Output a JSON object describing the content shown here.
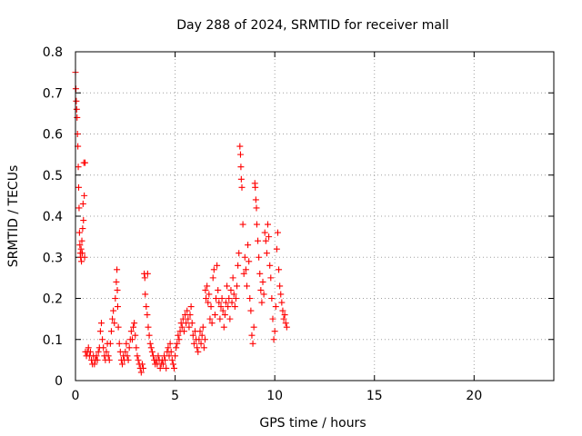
{
  "chart_data": {
    "type": "scatter",
    "title": "Day 288 of 2024, SRMTID for receiver mall",
    "xlabel": "GPS time / hours",
    "ylabel": "SRMTID / TECUs",
    "xlim": [
      0,
      24
    ],
    "ylim": [
      0,
      0.8
    ],
    "xticks": [
      0,
      5,
      10,
      15,
      20
    ],
    "xtick_labels": [
      "0",
      "5",
      "10",
      "15",
      "20"
    ],
    "yticks": [
      0,
      0.1,
      0.2,
      0.3,
      0.4,
      0.5,
      0.6,
      0.7,
      0.8
    ],
    "ytick_labels": [
      "0",
      "0.1",
      "0.2",
      "0.3",
      "0.4",
      "0.5",
      "0.6",
      "0.7",
      "0.8"
    ],
    "grid": true,
    "marker": "+",
    "color": "#ff0000",
    "series": [
      {
        "name": "SRMTID",
        "points": [
          [
            0.0,
            0.75
          ],
          [
            0.02,
            0.71
          ],
          [
            0.04,
            0.68
          ],
          [
            0.06,
            0.66
          ],
          [
            0.08,
            0.64
          ],
          [
            0.1,
            0.6
          ],
          [
            0.12,
            0.57
          ],
          [
            0.14,
            0.52
          ],
          [
            0.16,
            0.47
          ],
          [
            0.18,
            0.42
          ],
          [
            0.2,
            0.36
          ],
          [
            0.22,
            0.33
          ],
          [
            0.24,
            0.31
          ],
          [
            0.26,
            0.3
          ],
          [
            0.28,
            0.32
          ],
          [
            0.3,
            0.29
          ],
          [
            0.32,
            0.34
          ],
          [
            0.34,
            0.31
          ],
          [
            0.36,
            0.37
          ],
          [
            0.38,
            0.43
          ],
          [
            0.4,
            0.39
          ],
          [
            0.42,
            0.53
          ],
          [
            0.44,
            0.45
          ],
          [
            0.46,
            0.3
          ],
          [
            0.48,
            0.53
          ],
          [
            0.5,
            0.07
          ],
          [
            0.55,
            0.06
          ],
          [
            0.6,
            0.07
          ],
          [
            0.65,
            0.08
          ],
          [
            0.7,
            0.06
          ],
          [
            0.75,
            0.07
          ],
          [
            0.8,
            0.05
          ],
          [
            0.85,
            0.04
          ],
          [
            0.9,
            0.06
          ],
          [
            0.95,
            0.04
          ],
          [
            1.0,
            0.05
          ],
          [
            1.05,
            0.06
          ],
          [
            1.1,
            0.05
          ],
          [
            1.15,
            0.07
          ],
          [
            1.2,
            0.08
          ],
          [
            1.25,
            0.12
          ],
          [
            1.3,
            0.14
          ],
          [
            1.35,
            0.1
          ],
          [
            1.4,
            0.08
          ],
          [
            1.45,
            0.06
          ],
          [
            1.5,
            0.05
          ],
          [
            1.55,
            0.07
          ],
          [
            1.6,
            0.09
          ],
          [
            1.65,
            0.06
          ],
          [
            1.7,
            0.05
          ],
          [
            1.75,
            0.09
          ],
          [
            1.8,
            0.12
          ],
          [
            1.85,
            0.15
          ],
          [
            1.9,
            0.17
          ],
          [
            1.95,
            0.14
          ],
          [
            2.0,
            0.2
          ],
          [
            2.05,
            0.24
          ],
          [
            2.08,
            0.27
          ],
          [
            2.1,
            0.22
          ],
          [
            2.12,
            0.18
          ],
          [
            2.15,
            0.13
          ],
          [
            2.2,
            0.09
          ],
          [
            2.25,
            0.07
          ],
          [
            2.3,
            0.05
          ],
          [
            2.35,
            0.04
          ],
          [
            2.4,
            0.06
          ],
          [
            2.45,
            0.05
          ],
          [
            2.5,
            0.07
          ],
          [
            2.55,
            0.09
          ],
          [
            2.6,
            0.06
          ],
          [
            2.65,
            0.05
          ],
          [
            2.7,
            0.08
          ],
          [
            2.75,
            0.1
          ],
          [
            2.8,
            0.12
          ],
          [
            2.85,
            0.1
          ],
          [
            2.9,
            0.13
          ],
          [
            2.95,
            0.14
          ],
          [
            3.0,
            0.11
          ],
          [
            3.05,
            0.08
          ],
          [
            3.1,
            0.06
          ],
          [
            3.15,
            0.05
          ],
          [
            3.2,
            0.04
          ],
          [
            3.25,
            0.03
          ],
          [
            3.3,
            0.02
          ],
          [
            3.35,
            0.04
          ],
          [
            3.4,
            0.03
          ],
          [
            3.45,
            0.26
          ],
          [
            3.48,
            0.25
          ],
          [
            3.5,
            0.21
          ],
          [
            3.55,
            0.18
          ],
          [
            3.6,
            0.16
          ],
          [
            3.62,
            0.26
          ],
          [
            3.65,
            0.13
          ],
          [
            3.7,
            0.11
          ],
          [
            3.75,
            0.09
          ],
          [
            3.8,
            0.08
          ],
          [
            3.85,
            0.07
          ],
          [
            3.9,
            0.06
          ],
          [
            3.95,
            0.05
          ],
          [
            4.0,
            0.04
          ],
          [
            4.05,
            0.05
          ],
          [
            4.1,
            0.04
          ],
          [
            4.15,
            0.06
          ],
          [
            4.2,
            0.05
          ],
          [
            4.25,
            0.03
          ],
          [
            4.3,
            0.04
          ],
          [
            4.35,
            0.05
          ],
          [
            4.4,
            0.04
          ],
          [
            4.45,
            0.06
          ],
          [
            4.5,
            0.05
          ],
          [
            4.55,
            0.03
          ],
          [
            4.6,
            0.07
          ],
          [
            4.65,
            0.08
          ],
          [
            4.7,
            0.06
          ],
          [
            4.75,
            0.09
          ],
          [
            4.8,
            0.07
          ],
          [
            4.85,
            0.05
          ],
          [
            4.9,
            0.04
          ],
          [
            4.95,
            0.03
          ],
          [
            5.0,
            0.06
          ],
          [
            5.05,
            0.08
          ],
          [
            5.1,
            0.09
          ],
          [
            5.15,
            0.11
          ],
          [
            5.2,
            0.1
          ],
          [
            5.25,
            0.12
          ],
          [
            5.3,
            0.14
          ],
          [
            5.35,
            0.13
          ],
          [
            5.4,
            0.15
          ],
          [
            5.45,
            0.12
          ],
          [
            5.5,
            0.16
          ],
          [
            5.55,
            0.14
          ],
          [
            5.6,
            0.17
          ],
          [
            5.65,
            0.15
          ],
          [
            5.7,
            0.13
          ],
          [
            5.75,
            0.16
          ],
          [
            5.8,
            0.18
          ],
          [
            5.85,
            0.14
          ],
          [
            5.9,
            0.11
          ],
          [
            5.95,
            0.09
          ],
          [
            6.0,
            0.12
          ],
          [
            6.05,
            0.1
          ],
          [
            6.1,
            0.08
          ],
          [
            6.15,
            0.07
          ],
          [
            6.2,
            0.1
          ],
          [
            6.25,
            0.12
          ],
          [
            6.3,
            0.09
          ],
          [
            6.35,
            0.11
          ],
          [
            6.4,
            0.13
          ],
          [
            6.45,
            0.08
          ],
          [
            6.5,
            0.1
          ],
          [
            6.52,
            0.22
          ],
          [
            6.55,
            0.2
          ],
          [
            6.6,
            0.23
          ],
          [
            6.65,
            0.19
          ],
          [
            6.7,
            0.21
          ],
          [
            6.75,
            0.15
          ],
          [
            6.8,
            0.18
          ],
          [
            6.85,
            0.14
          ],
          [
            6.9,
            0.25
          ],
          [
            6.95,
            0.27
          ],
          [
            7.0,
            0.16
          ],
          [
            7.05,
            0.2
          ],
          [
            7.1,
            0.28
          ],
          [
            7.15,
            0.22
          ],
          [
            7.2,
            0.19
          ],
          [
            7.25,
            0.15
          ],
          [
            7.3,
            0.18
          ],
          [
            7.35,
            0.2
          ],
          [
            7.4,
            0.17
          ],
          [
            7.45,
            0.13
          ],
          [
            7.5,
            0.16
          ],
          [
            7.55,
            0.19
          ],
          [
            7.6,
            0.23
          ],
          [
            7.65,
            0.18
          ],
          [
            7.7,
            0.2
          ],
          [
            7.75,
            0.15
          ],
          [
            7.8,
            0.22
          ],
          [
            7.85,
            0.19
          ],
          [
            7.9,
            0.25
          ],
          [
            7.95,
            0.21
          ],
          [
            8.0,
            0.18
          ],
          [
            8.05,
            0.2
          ],
          [
            8.1,
            0.23
          ],
          [
            8.15,
            0.28
          ],
          [
            8.2,
            0.31
          ],
          [
            8.25,
            0.57
          ],
          [
            8.28,
            0.55
          ],
          [
            8.3,
            0.52
          ],
          [
            8.32,
            0.49
          ],
          [
            8.35,
            0.47
          ],
          [
            8.4,
            0.38
          ],
          [
            8.45,
            0.26
          ],
          [
            8.5,
            0.3
          ],
          [
            8.55,
            0.27
          ],
          [
            8.6,
            0.23
          ],
          [
            8.65,
            0.33
          ],
          [
            8.7,
            0.29
          ],
          [
            8.75,
            0.2
          ],
          [
            8.8,
            0.17
          ],
          [
            8.85,
            0.11
          ],
          [
            8.9,
            0.09
          ],
          [
            8.95,
            0.13
          ],
          [
            9.0,
            0.48
          ],
          [
            9.02,
            0.47
          ],
          [
            9.05,
            0.44
          ],
          [
            9.08,
            0.42
          ],
          [
            9.1,
            0.38
          ],
          [
            9.15,
            0.34
          ],
          [
            9.2,
            0.3
          ],
          [
            9.25,
            0.26
          ],
          [
            9.3,
            0.22
          ],
          [
            9.35,
            0.19
          ],
          [
            9.4,
            0.24
          ],
          [
            9.45,
            0.21
          ],
          [
            9.5,
            0.36
          ],
          [
            9.55,
            0.34
          ],
          [
            9.6,
            0.31
          ],
          [
            9.65,
            0.38
          ],
          [
            9.7,
            0.35
          ],
          [
            9.75,
            0.28
          ],
          [
            9.8,
            0.25
          ],
          [
            9.85,
            0.2
          ],
          [
            9.9,
            0.15
          ],
          [
            9.95,
            0.1
          ],
          [
            10.0,
            0.12
          ],
          [
            10.05,
            0.18
          ],
          [
            10.1,
            0.32
          ],
          [
            10.15,
            0.36
          ],
          [
            10.2,
            0.27
          ],
          [
            10.25,
            0.23
          ],
          [
            10.3,
            0.21
          ],
          [
            10.35,
            0.19
          ],
          [
            10.4,
            0.17
          ],
          [
            10.45,
            0.15
          ],
          [
            10.5,
            0.16
          ],
          [
            10.55,
            0.14
          ],
          [
            10.6,
            0.13
          ]
        ]
      }
    ]
  }
}
